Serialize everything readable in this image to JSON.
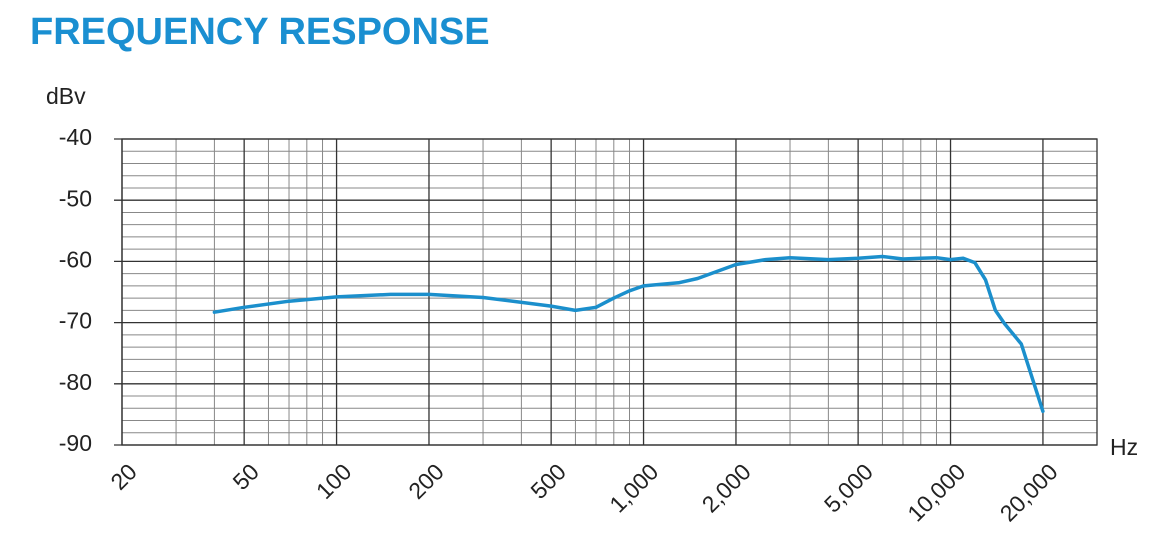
{
  "chart_data": {
    "type": "line",
    "title": "FREQUENCY RESPONSE",
    "y_label": "dBv",
    "x_label": "Hz",
    "x": [
      40,
      50,
      70,
      100,
      150,
      200,
      300,
      500,
      600,
      700,
      800,
      900,
      1000,
      1300,
      1500,
      2000,
      2500,
      3000,
      4000,
      5000,
      6000,
      7000,
      8000,
      9000,
      10000,
      11000,
      12000,
      13000,
      14000,
      15000,
      17000,
      20000
    ],
    "series": [
      {
        "name": "Frequency response",
        "color": "#1b8fcc",
        "values": [
          -68.3,
          -67.5,
          -66.5,
          -65.8,
          -65.4,
          -65.4,
          -65.9,
          -67.3,
          -68.0,
          -67.5,
          -66.0,
          -64.8,
          -64.0,
          -63.5,
          -62.8,
          -60.5,
          -59.7,
          -59.4,
          -59.7,
          -59.5,
          -59.2,
          -59.6,
          -59.5,
          -59.4,
          -59.7,
          -59.5,
          -60.2,
          -63.0,
          -68.0,
          -70.2,
          -73.5,
          -84.5
        ]
      }
    ],
    "xscale": "log",
    "xlim": [
      20,
      30000
    ],
    "ylim": [
      -90,
      -40
    ],
    "xticks": [
      20,
      50,
      100,
      200,
      500,
      {
        "value": 1000,
        "label": "1,000"
      },
      {
        "value": 2000,
        "label": "2,000"
      },
      {
        "value": 5000,
        "label": "5,000"
      },
      {
        "value": 10000,
        "label": "10,000"
      },
      {
        "value": 20000,
        "label": "20,000"
      }
    ],
    "yticks": [
      -90,
      -80,
      -70,
      -60,
      -50,
      -40
    ],
    "minor_xticks": [
      30,
      40,
      60,
      70,
      80,
      90,
      300,
      400,
      600,
      700,
      800,
      900,
      3000,
      4000,
      6000,
      7000,
      8000,
      9000,
      30000
    ],
    "minor_yticks": [
      -88,
      -86,
      -84,
      -82,
      -78,
      -76,
      -74,
      -72,
      -68,
      -66,
      -64,
      -62,
      -58,
      -56,
      -54,
      -52,
      -48,
      -46,
      -44,
      -42
    ],
    "grid": true
  }
}
